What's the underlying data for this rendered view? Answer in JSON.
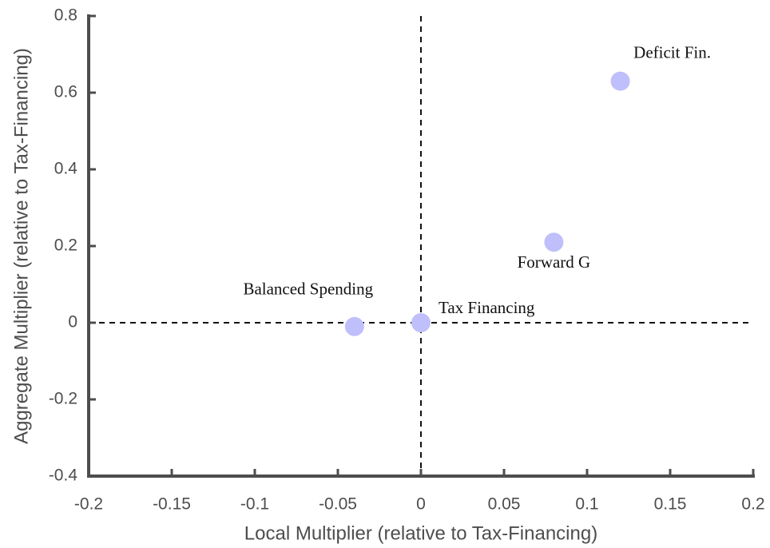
{
  "chart_data": {
    "type": "scatter",
    "xlabel": "Local Multiplier (relative to Tax-Financing)",
    "ylabel": "Aggregate Multiplier (relative to Tax-Financing)",
    "xlim": [
      -0.2,
      0.2
    ],
    "ylim": [
      -0.4,
      0.8
    ],
    "xticks": [
      -0.2,
      -0.15,
      -0.1,
      -0.05,
      0,
      0.05,
      0.1,
      0.15,
      0.2
    ],
    "yticks": [
      -0.4,
      -0.2,
      0,
      0.2,
      0.4,
      0.6,
      0.8
    ],
    "reference_lines": {
      "x": 0,
      "y": 0
    },
    "color": "#bfbffb",
    "labels": [
      "Balanced Spending",
      "Tax Financing",
      "Forward G",
      "Deficit Fin."
    ],
    "x": [
      -0.04,
      0,
      0.08,
      0.12
    ],
    "values": [
      -0.01,
      0,
      0.21,
      0.63
    ]
  }
}
